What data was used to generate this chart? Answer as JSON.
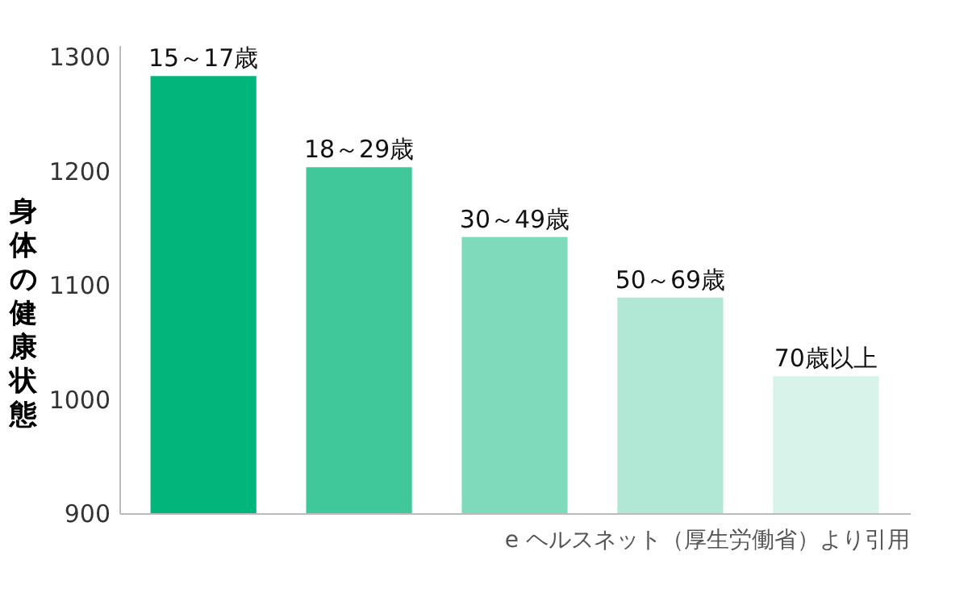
{
  "chart_data": {
    "type": "bar",
    "ylabel": "身体の健康状態",
    "categories": [
      "15～17歳",
      "18～29歳",
      "30～49歳",
      "50～69歳",
      "70歳以上"
    ],
    "values": [
      1283,
      1203,
      1142,
      1089,
      1020
    ],
    "colors": [
      "#00b67a",
      "#40c89b",
      "#7fdabb",
      "#b0e8d5",
      "#d8f4ea"
    ],
    "ylim": [
      900,
      1310
    ],
    "yticks": [
      900,
      1000,
      1100,
      1200,
      1300
    ],
    "grid": false,
    "annotations": [
      "e ヘルスネット（厚生労働省）より引用"
    ]
  }
}
